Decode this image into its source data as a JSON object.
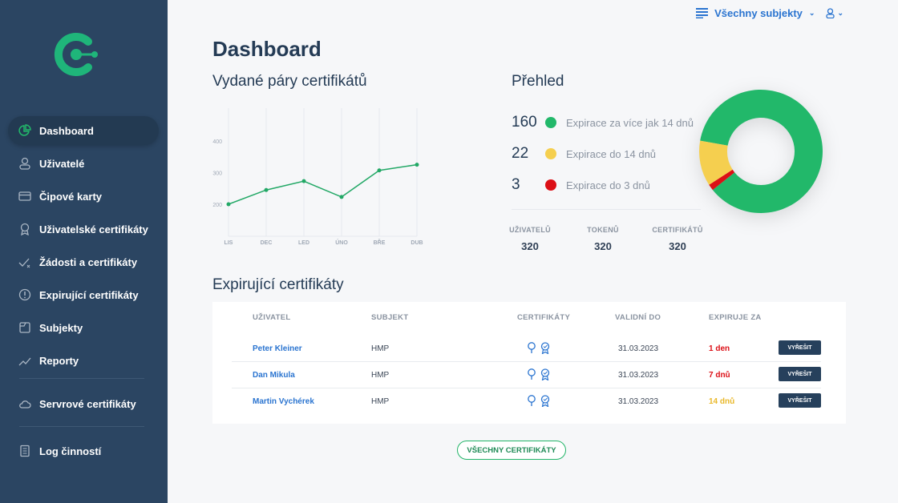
{
  "sidebar": {
    "items": [
      {
        "label": "Dashboard",
        "icon": "pie-chart-icon"
      },
      {
        "label": "Uživatelé",
        "icon": "user-icon"
      },
      {
        "label": "Čipové karty",
        "icon": "card-icon"
      },
      {
        "label": "Uživatelské certifikáty",
        "icon": "award-icon"
      },
      {
        "label": "Žádosti a certifikáty",
        "icon": "check-x-icon"
      },
      {
        "label": "Expirující certifikáty",
        "icon": "alert-circle-icon"
      },
      {
        "label": "Subjekty",
        "icon": "folder-icon"
      },
      {
        "label": "Reporty",
        "icon": "trend-icon"
      },
      {
        "label": "Servrové certifikáty",
        "icon": "cloud-icon"
      },
      {
        "label": "Log činností",
        "icon": "log-icon"
      }
    ]
  },
  "topbar": {
    "subject": "Všechny subjekty"
  },
  "page_title": "Dashboard",
  "chart_title": "Vydané páry certifikátů",
  "overview": {
    "title": "Přehled",
    "legend": [
      {
        "count": "160",
        "label": "Expirace za více jak 14 dnů",
        "color": "#22b86a"
      },
      {
        "count": "22",
        "label": "Expirace do 14 dnů",
        "color": "#f5cf4f"
      },
      {
        "count": "3",
        "label": "Expirace do 3 dnů",
        "color": "#dc0f16"
      }
    ],
    "stats": [
      {
        "label": "UŽIVATELŮ",
        "value": "320"
      },
      {
        "label": "TOKENŮ",
        "value": "320"
      },
      {
        "label": "CERTIFIKÁTŮ",
        "value": "320"
      }
    ]
  },
  "chart_data": {
    "type": "line",
    "title": "Vydané páry certifikátů",
    "categories": [
      "LIS",
      "DEC",
      "LED",
      "ÚNO",
      "BŘE",
      "DUB"
    ],
    "values": [
      200,
      245,
      273,
      223,
      307,
      325
    ],
    "yticks": [
      "200",
      "300",
      "400"
    ],
    "ylim": [
      100,
      500
    ],
    "color": "#22a866"
  },
  "expiring": {
    "title": "Expirující certifikáty",
    "headers": [
      "UŽIVATEL",
      "SUBJEKT",
      "CERTIFIKÁTY",
      "VALIDNÍ DO",
      "EXPIRUJE ZA"
    ],
    "rows": [
      {
        "user": "Peter Kleiner",
        "subject": "HMP",
        "valid": "31.03.2023",
        "expires": "1 den",
        "color": "#dc0f16",
        "action": "VYŘEŠIT"
      },
      {
        "user": "Dan Mikula",
        "subject": "HMP",
        "valid": "31.03.2023",
        "expires": "7 dnů",
        "color": "#dc0f16",
        "action": "VYŘEŠIT"
      },
      {
        "user": "Martin Vychérek",
        "subject": "HMP",
        "valid": "31.03.2023",
        "expires": "14 dnů",
        "color": "#e9b82a",
        "action": "VYŘEŠIT"
      }
    ],
    "all_button": "VŠECHNY CERTIFIKÁTY"
  }
}
